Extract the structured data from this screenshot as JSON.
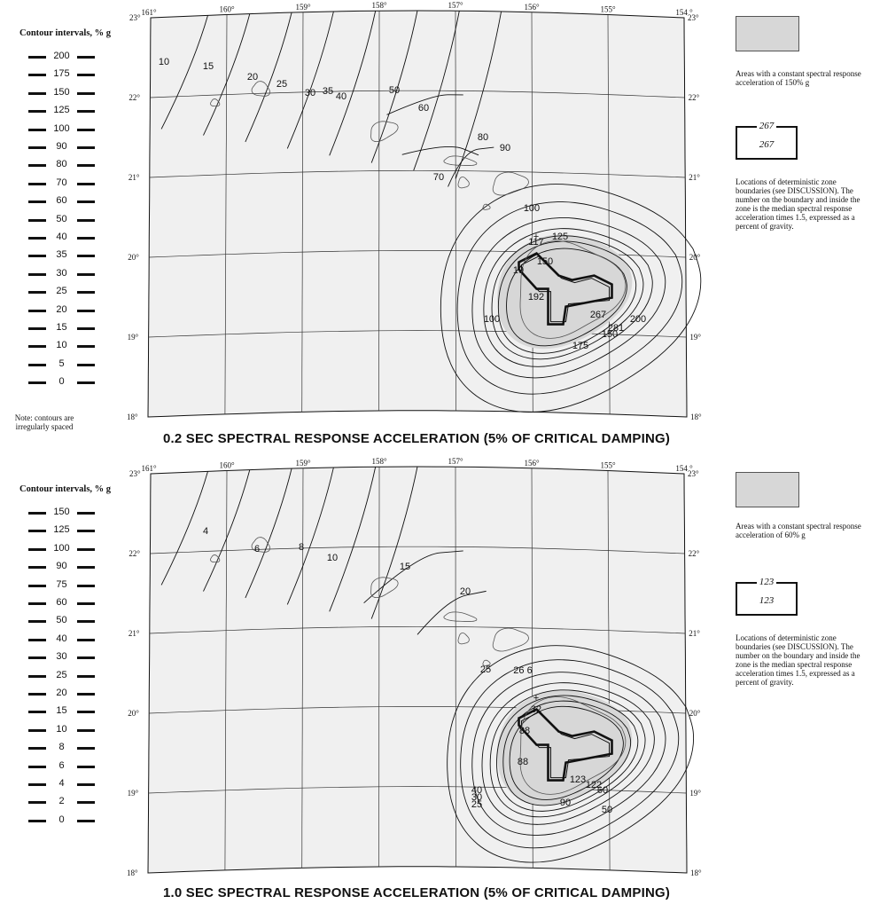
{
  "panel_top": {
    "legend_title": "Contour intervals, % g",
    "contour_values": [
      "200",
      "175",
      "150",
      "125",
      "100",
      "90",
      "80",
      "70",
      "60",
      "50",
      "40",
      "35",
      "30",
      "25",
      "20",
      "15",
      "10",
      "5",
      "0"
    ],
    "note": "Note:  contours are irregularly spaced",
    "lon_labels": [
      "161°",
      "160°",
      "159°",
      "158°",
      "157°",
      "156°",
      "155°",
      "154 °"
    ],
    "lat_labels": [
      "23°",
      "22°",
      "21°",
      "20°",
      "19°",
      "18°"
    ],
    "contour_labels": [
      "10",
      "15",
      "20",
      "25",
      "30",
      "35",
      "40",
      "50",
      "60",
      "70",
      "80",
      "90",
      "100",
      "117",
      "125",
      "150",
      "192",
      "267",
      "281",
      "200",
      "175",
      "150",
      "100",
      "19",
      "+"
    ],
    "caption": "0.2 SEC SPECTRAL RESPONSE ACCELERATION (5% OF CRITICAL DAMPING)",
    "swatch_text": "Areas with a constant spectral response acceleration of 150% g",
    "zone_box_top": "267",
    "zone_box_inner": "267",
    "zone_text": "Locations of deterministic zone boundaries (see DISCUSSION). The number on the boundary and inside the zone is the median spectral response acceleration times 1.5, expressed as a percent of gravity."
  },
  "panel_bottom": {
    "legend_title": "Contour intervals, % g",
    "contour_values": [
      "150",
      "125",
      "100",
      "90",
      "75",
      "60",
      "50",
      "40",
      "30",
      "25",
      "20",
      "15",
      "10",
      "8",
      "6",
      "4",
      "2",
      "0"
    ],
    "lon_labels": [
      "161°",
      "160°",
      "159°",
      "158°",
      "157°",
      "156°",
      "155°",
      "154 °"
    ],
    "lat_labels": [
      "23°",
      "22°",
      "21°",
      "20°",
      "19°",
      "18°"
    ],
    "contour_labels": [
      "4",
      "6",
      "8",
      "10",
      "15",
      "20",
      "25",
      "26 6",
      "32",
      "88",
      "88",
      "123",
      "122",
      "60",
      "90",
      "50",
      "40",
      "30",
      "25",
      "+"
    ],
    "caption": "1.0 SEC SPECTRAL RESPONSE ACCELERATION (5% OF CRITICAL DAMPING)",
    "swatch_text": "Areas with a constant spectral response acceleration of 60% g",
    "zone_box_top": "123",
    "zone_box_inner": "123",
    "zone_text": "Locations of deterministic zone boundaries (see DISCUSSION). The number on the boundary and inside the zone is the median spectral response acceleration times 1.5, expressed as a percent of gravity."
  },
  "colors": {
    "ocean": "#f0f0f0",
    "shaded_zone": "#d7d7d7",
    "line": "#111111"
  },
  "map": {
    "lon_range": [
      161,
      154
    ],
    "lat_range": [
      18,
      23
    ]
  }
}
